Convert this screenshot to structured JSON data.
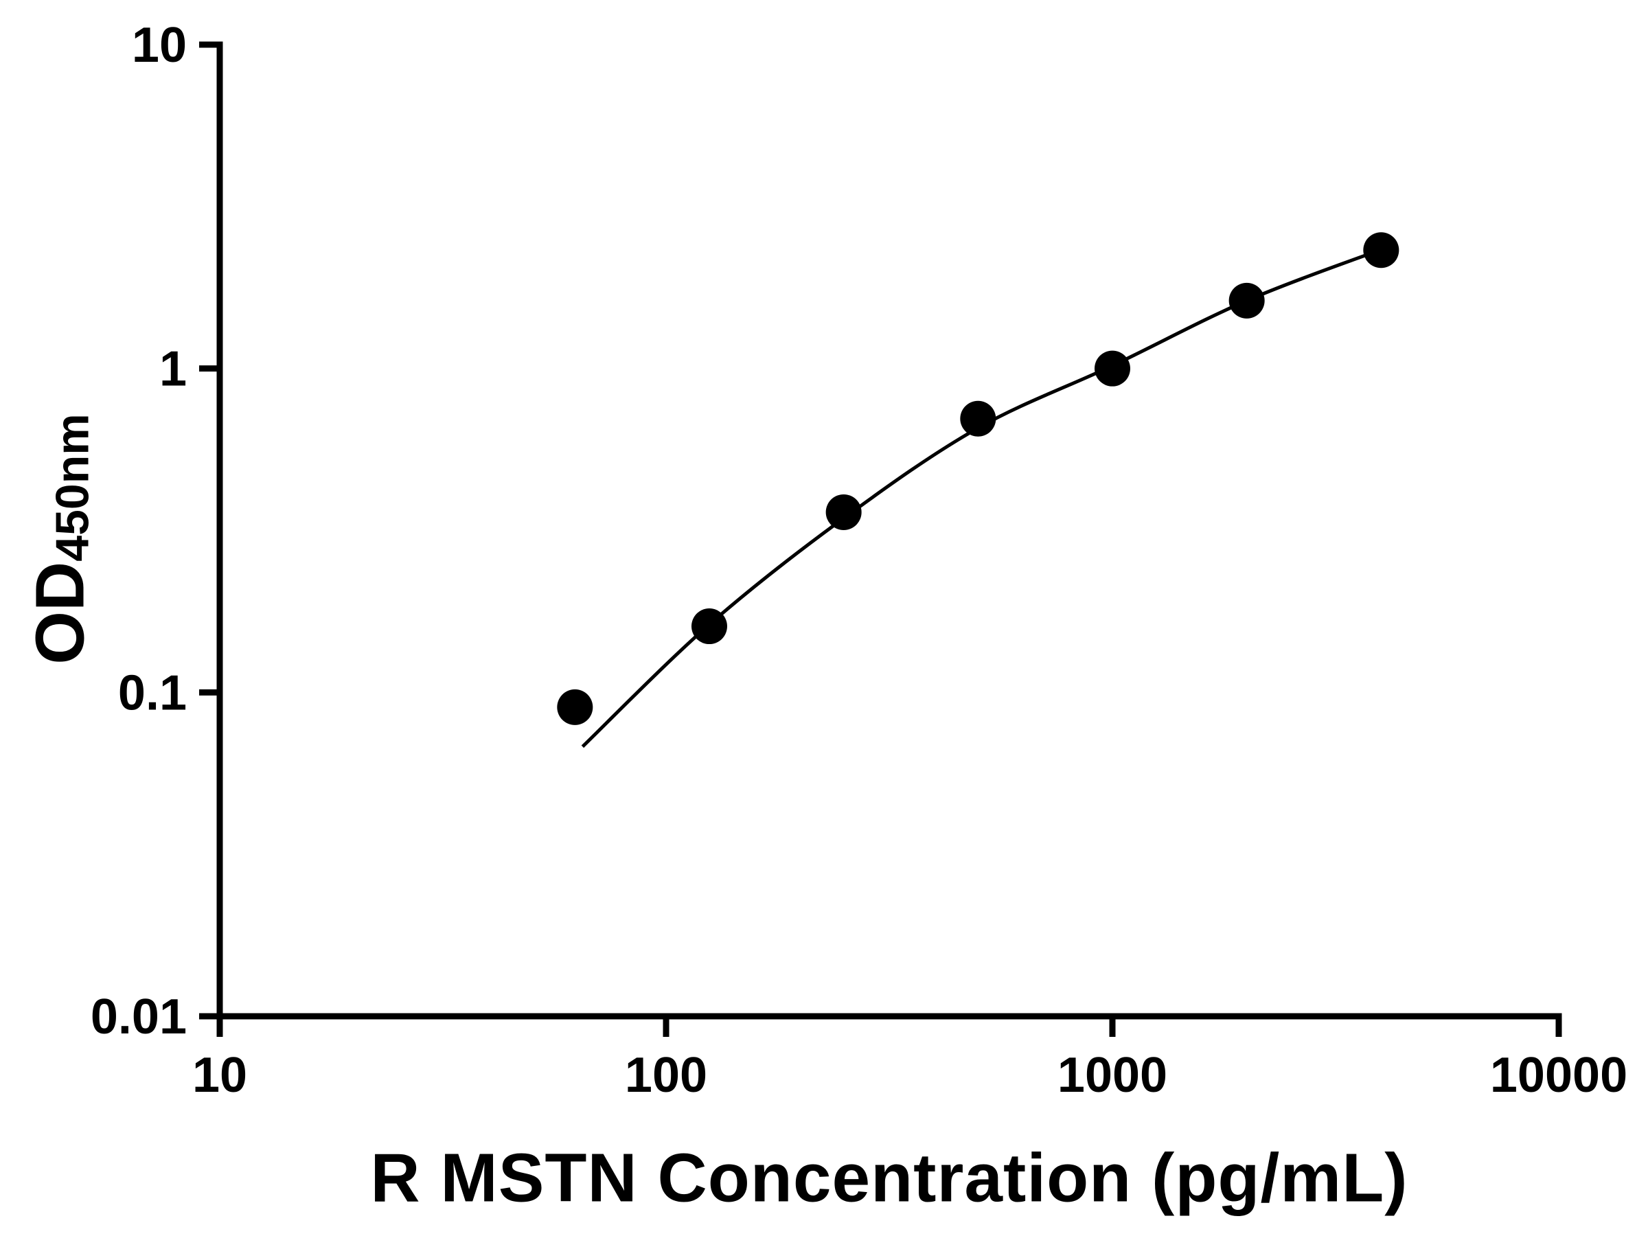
{
  "page": {
    "background": "#ffffff"
  },
  "chart_data": {
    "type": "scatter",
    "title": "",
    "xlabel": "R MSTN Concentration (pg/mL)",
    "ylabel": "OD450nm",
    "ylabel_main": "OD",
    "ylabel_sub": "450nm",
    "xscale": "log",
    "yscale": "log",
    "xlim": [
      10,
      10000
    ],
    "ylim": [
      0.01,
      10
    ],
    "x_ticks": [
      10,
      100,
      1000,
      10000
    ],
    "x_tick_labels": [
      "10",
      "100",
      "1000",
      "10000"
    ],
    "y_ticks": [
      10,
      1,
      0.1,
      0.01
    ],
    "y_tick_labels": [
      "10",
      "1",
      "0.1",
      "0.01"
    ],
    "grid": false,
    "legend": null,
    "x": [
      62.5,
      125,
      250,
      500,
      1000,
      2000,
      4000
    ],
    "y": [
      0.09,
      0.16,
      0.36,
      0.7,
      1.0,
      1.62,
      2.32
    ],
    "fit_curve": {
      "x": [
        65,
        125,
        250,
        500,
        1000,
        2000,
        4000
      ],
      "y": [
        0.068,
        0.162,
        0.345,
        0.655,
        1.02,
        1.62,
        2.33
      ]
    },
    "marker_color": "#000000",
    "curve_color": "#000000",
    "axis_color": "#000000",
    "text_color": "#000000"
  }
}
